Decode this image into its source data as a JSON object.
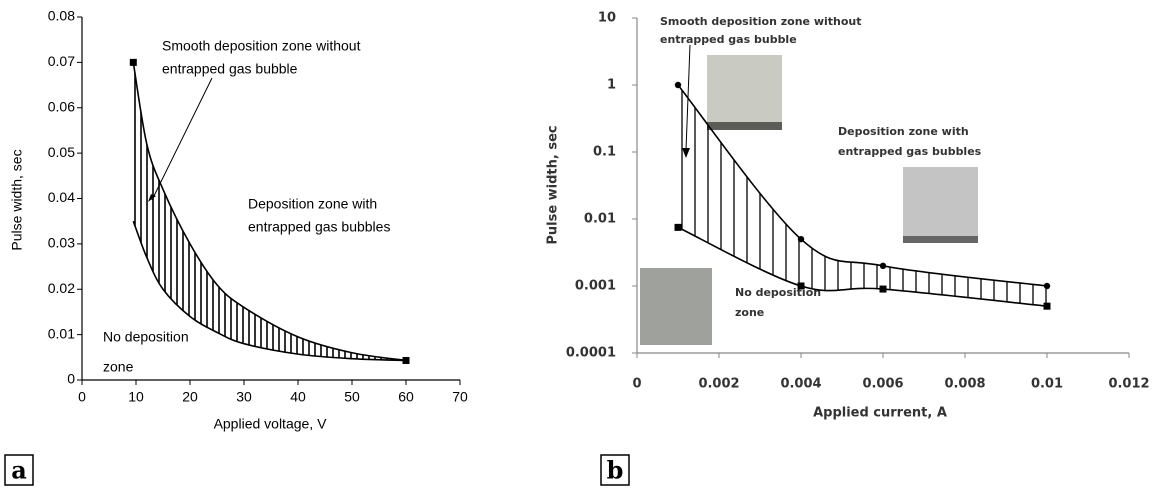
{
  "chart_data": [
    {
      "type": "line",
      "panel_label": "a",
      "xlabel": "Applied voltage, V",
      "ylabel": "Pulse width, sec",
      "x": [
        9.5,
        12,
        15,
        20,
        25,
        30,
        40,
        50,
        60
      ],
      "series": [
        {
          "color": "#000000",
          "values": [
            0.07,
            0.052,
            0.042,
            0.03,
            0.021,
            0.016,
            0.0095,
            0.006,
            0.0043
          ]
        },
        {
          "color": "#000000",
          "values": [
            0.035,
            0.027,
            0.02,
            0.014,
            0.0105,
            0.008,
            0.0057,
            0.0047,
            0.0043
          ]
        }
      ],
      "xlim": [
        0,
        70
      ],
      "xticks": [
        0,
        10,
        20,
        30,
        40,
        50,
        60,
        70
      ],
      "ylim": [
        0,
        0.08
      ],
      "yticks": [
        0,
        0.01,
        0.02,
        0.03,
        0.04,
        0.05,
        0.06,
        0.07,
        0.08
      ],
      "log_y": false,
      "hatch": true,
      "annotations": [
        [
          "Smooth deposition zone without",
          "entrapped gas bubble"
        ],
        [
          "Deposition zone with",
          "entrapped gas bubbles"
        ],
        [
          "No deposition",
          "zone"
        ]
      ]
    },
    {
      "type": "line",
      "panel_label": "b",
      "xlabel": "Applied current, A",
      "ylabel": "Pulse width, sec",
      "x": [
        0.001,
        0.004,
        0.006,
        0.01
      ],
      "series": [
        {
          "color": "#000000",
          "marker": "circle",
          "values": [
            1,
            0.005,
            0.002,
            0.001
          ]
        },
        {
          "color": "#000000",
          "marker": "square",
          "values": [
            0.0075,
            0.001,
            0.0009,
            0.0005
          ]
        }
      ],
      "xlim": [
        0,
        0.012
      ],
      "xticks": [
        0,
        0.002,
        0.004,
        0.006,
        0.008,
        0.01,
        0.012
      ],
      "ylim": [
        0.0001,
        10
      ],
      "yticks": [
        0.0001,
        0.001,
        0.01,
        0.1,
        1,
        10
      ],
      "log_y": true,
      "hatch": true,
      "annotations": [
        [
          "Smooth deposition zone without",
          "entrapped gas bubble"
        ],
        [
          "Deposition  zone with",
          "entrapped gas bubbles"
        ],
        [
          "No deposition",
          "zone"
        ]
      ]
    }
  ]
}
